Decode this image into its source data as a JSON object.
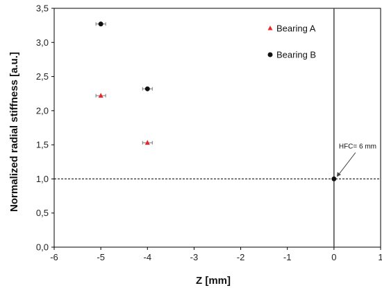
{
  "chart_data": {
    "type": "scatter",
    "xlabel": "Z [mm]",
    "ylabel": "Normalized  radial  stiffness [a.u.]",
    "xlim": [
      -6,
      1
    ],
    "ylim": [
      0,
      3.5
    ],
    "x_ticks": [
      "-6",
      "-5",
      "-4",
      "-3",
      "-2",
      "-1",
      "0",
      "1"
    ],
    "y_ticks": [
      "0,0",
      "0,5",
      "1,0",
      "1,5",
      "2,0",
      "2,5",
      "3,0",
      "3,5"
    ],
    "grid": false,
    "legend_position": "top-right",
    "series": [
      {
        "name": "Bearing A",
        "marker": "triangle",
        "color": "#e8262b",
        "x": [
          -5,
          -4
        ],
        "y": [
          2.22,
          1.53
        ]
      },
      {
        "name": "Bearing B",
        "marker": "circle",
        "color": "#111111",
        "x": [
          -5,
          -4,
          0
        ],
        "y": [
          3.27,
          2.32,
          1.0
        ]
      }
    ],
    "reference_lines": [
      {
        "orientation": "horizontal",
        "value": 1.0,
        "style": "dashed"
      },
      {
        "orientation": "vertical",
        "value": 0,
        "style": "solid"
      }
    ],
    "annotation": {
      "text": "HFC= 6 mm",
      "x": 0,
      "y": 1.0
    }
  }
}
